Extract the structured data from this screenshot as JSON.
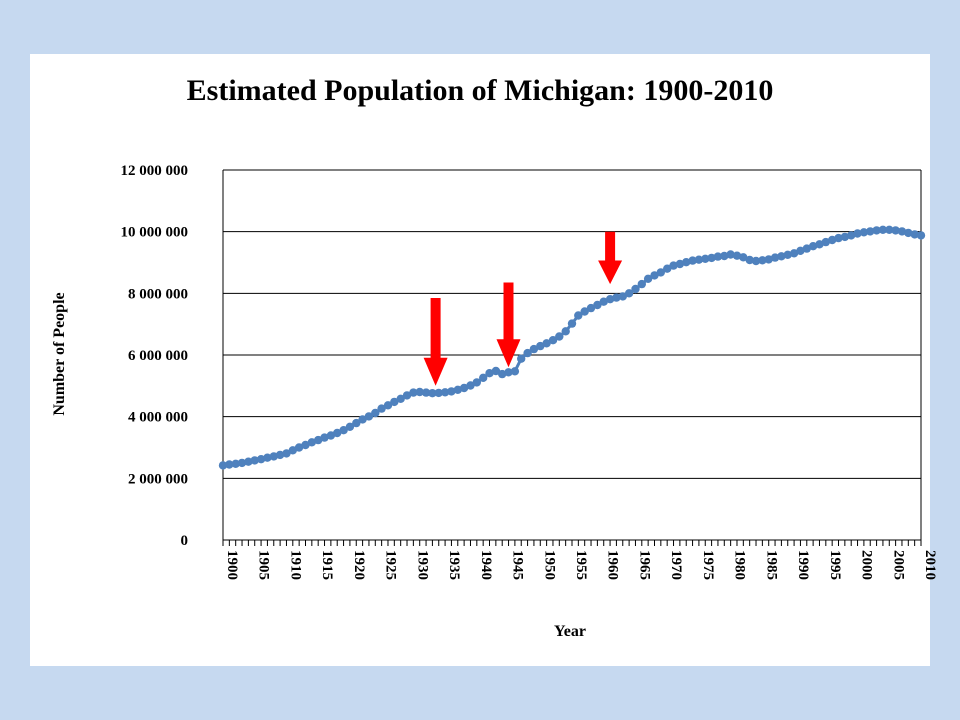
{
  "chart_data": {
    "type": "line",
    "title": "Estimated Population of Michigan: 1900-2010",
    "xlabel": "Year",
    "ylabel": "Number of People",
    "ylim": [
      0,
      12000000
    ],
    "ytick_labels": [
      "0",
      "2 000 000",
      "4 000 000",
      "6 000 000",
      "8 000 000",
      "10 000 000",
      "12 000 000"
    ],
    "xlim": [
      1900,
      2010
    ],
    "xtick_labels": [
      "1900",
      "1905",
      "1910",
      "1915",
      "1920",
      "1925",
      "1930",
      "1935",
      "1940",
      "1945",
      "1950",
      "1955",
      "1960",
      "1965",
      "1970",
      "1975",
      "1980",
      "1985",
      "1990",
      "1995",
      "2000",
      "2005",
      "2010"
    ],
    "grid": "horizontal",
    "legend": "none",
    "series": [
      {
        "color": "#4f81bd",
        "marker": "circle",
        "x": [
          1900,
          1901,
          1902,
          1903,
          1904,
          1905,
          1906,
          1907,
          1908,
          1909,
          1910,
          1911,
          1912,
          1913,
          1914,
          1915,
          1916,
          1917,
          1918,
          1919,
          1920,
          1921,
          1922,
          1923,
          1924,
          1925,
          1926,
          1927,
          1928,
          1929,
          1930,
          1931,
          1932,
          1933,
          1934,
          1935,
          1936,
          1937,
          1938,
          1939,
          1940,
          1941,
          1942,
          1943,
          1944,
          1945,
          1946,
          1947,
          1948,
          1949,
          1950,
          1951,
          1952,
          1953,
          1954,
          1955,
          1956,
          1957,
          1958,
          1959,
          1960,
          1961,
          1962,
          1963,
          1964,
          1965,
          1966,
          1967,
          1968,
          1969,
          1970,
          1971,
          1972,
          1973,
          1974,
          1975,
          1976,
          1977,
          1978,
          1979,
          1980,
          1981,
          1982,
          1983,
          1984,
          1985,
          1986,
          1987,
          1988,
          1989,
          1990,
          1991,
          1992,
          1993,
          1994,
          1995,
          1996,
          1997,
          1998,
          1999,
          2000,
          2001,
          2002,
          2003,
          2004,
          2005,
          2006,
          2007,
          2008,
          2009,
          2010
        ],
        "y": [
          2420000,
          2450000,
          2470000,
          2500000,
          2540000,
          2580000,
          2620000,
          2670000,
          2710000,
          2760000,
          2810000,
          2910000,
          3000000,
          3080000,
          3170000,
          3240000,
          3320000,
          3390000,
          3470000,
          3560000,
          3670000,
          3790000,
          3910000,
          4010000,
          4120000,
          4260000,
          4370000,
          4480000,
          4580000,
          4690000,
          4780000,
          4800000,
          4780000,
          4760000,
          4770000,
          4790000,
          4820000,
          4870000,
          4930000,
          5010000,
          5110000,
          5260000,
          5410000,
          5480000,
          5380000,
          5440000,
          5470000,
          5880000,
          6060000,
          6190000,
          6290000,
          6380000,
          6480000,
          6600000,
          6770000,
          7020000,
          7280000,
          7410000,
          7520000,
          7620000,
          7730000,
          7810000,
          7860000,
          7900000,
          8000000,
          8140000,
          8300000,
          8470000,
          8580000,
          8680000,
          8800000,
          8900000,
          8950000,
          9010000,
          9060000,
          9090000,
          9120000,
          9150000,
          9190000,
          9210000,
          9260000,
          9220000,
          9170000,
          9080000,
          9050000,
          9070000,
          9100000,
          9160000,
          9200000,
          9250000,
          9300000,
          9380000,
          9450000,
          9530000,
          9590000,
          9660000,
          9730000,
          9790000,
          9830000,
          9880000,
          9940000,
          9980000,
          10010000,
          10040000,
          10060000,
          10060000,
          10040000,
          10010000,
          9960000,
          9910000,
          9880000
        ]
      }
    ],
    "annotations": [
      {
        "type": "down-arrow",
        "color": "#ff0000",
        "x": 1933.5,
        "y_top": 7850000,
        "y_tip": 5000000
      },
      {
        "type": "down-arrow",
        "color": "#ff0000",
        "x": 1945,
        "y_top": 8350000,
        "y_tip": 5600000
      },
      {
        "type": "down-arrow",
        "color": "#ff0000",
        "x": 1961,
        "y_top": 10000000,
        "y_tip": 8300000
      }
    ]
  }
}
